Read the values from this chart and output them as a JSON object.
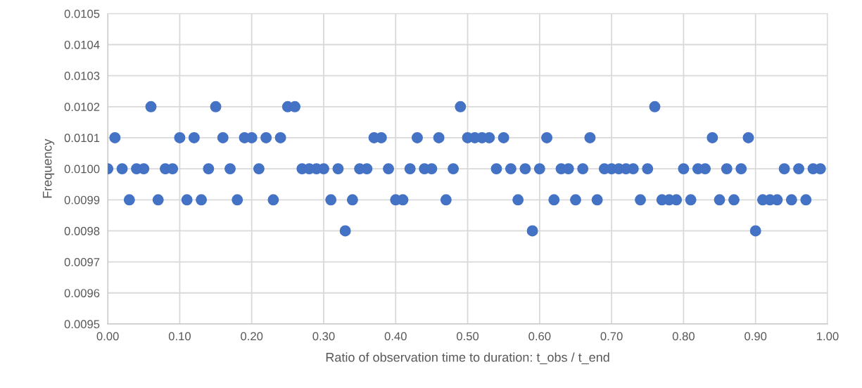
{
  "chart_data": {
    "type": "scatter",
    "xlabel": "Ratio of observation time to duration: t_obs / t_end",
    "ylabel": "Frequency",
    "x": [
      0.0,
      0.01,
      0.02,
      0.03,
      0.04,
      0.05,
      0.06,
      0.07,
      0.08,
      0.09,
      0.1,
      0.11,
      0.12,
      0.13,
      0.14,
      0.15,
      0.16,
      0.17,
      0.18,
      0.19,
      0.2,
      0.21,
      0.22,
      0.23,
      0.24,
      0.25,
      0.26,
      0.27,
      0.28,
      0.29,
      0.3,
      0.31,
      0.32,
      0.33,
      0.34,
      0.35,
      0.36,
      0.37,
      0.38,
      0.39,
      0.4,
      0.41,
      0.42,
      0.43,
      0.44,
      0.45,
      0.46,
      0.47,
      0.48,
      0.49,
      0.5,
      0.51,
      0.52,
      0.53,
      0.54,
      0.55,
      0.56,
      0.57,
      0.58,
      0.59,
      0.6,
      0.61,
      0.62,
      0.63,
      0.64,
      0.65,
      0.66,
      0.67,
      0.68,
      0.69,
      0.7,
      0.71,
      0.72,
      0.73,
      0.74,
      0.75,
      0.76,
      0.77,
      0.78,
      0.79,
      0.8,
      0.81,
      0.82,
      0.83,
      0.84,
      0.85,
      0.86,
      0.87,
      0.88,
      0.89,
      0.9,
      0.91,
      0.92,
      0.93,
      0.94,
      0.95,
      0.96,
      0.97,
      0.98,
      0.99
    ],
    "series": [
      {
        "color": "#4472c4",
        "values": [
          0.01,
          0.0101,
          0.01,
          0.0099,
          0.01,
          0.01,
          0.0102,
          0.0099,
          0.01,
          0.01,
          0.0101,
          0.0099,
          0.0101,
          0.0099,
          0.01,
          0.0102,
          0.0101,
          0.01,
          0.0099,
          0.0101,
          0.0101,
          0.01,
          0.0101,
          0.0099,
          0.0101,
          0.0102,
          0.0102,
          0.01,
          0.01,
          0.01,
          0.01,
          0.0099,
          0.01,
          0.0098,
          0.0099,
          0.01,
          0.01,
          0.0101,
          0.0101,
          0.01,
          0.0099,
          0.0099,
          0.01,
          0.0101,
          0.01,
          0.01,
          0.0101,
          0.0099,
          0.01,
          0.0102,
          0.0101,
          0.0101,
          0.0101,
          0.0101,
          0.01,
          0.0101,
          0.01,
          0.0099,
          0.01,
          0.0098,
          0.01,
          0.0101,
          0.0099,
          0.01,
          0.01,
          0.0099,
          0.01,
          0.0101,
          0.0099,
          0.01,
          0.01,
          0.01,
          0.01,
          0.01,
          0.0099,
          0.01,
          0.0102,
          0.0099,
          0.0099,
          0.0099,
          0.01,
          0.0099,
          0.01,
          0.01,
          0.0101,
          0.0099,
          0.01,
          0.0099,
          0.01,
          0.0101,
          0.0098,
          0.0099,
          0.0099,
          0.0099,
          0.01,
          0.0099,
          0.01,
          0.0099,
          0.01,
          0.01
        ]
      }
    ],
    "xlim": [
      0,
      1
    ],
    "ylim": [
      0.0095,
      0.0105
    ],
    "xticks": [
      {
        "value": 0,
        "label": "0.00"
      },
      {
        "value": 0.1,
        "label": "0.10"
      },
      {
        "value": 0.2,
        "label": "0.20"
      },
      {
        "value": 0.3,
        "label": "0.30"
      },
      {
        "value": 0.4,
        "label": "0.40"
      },
      {
        "value": 0.5,
        "label": "0.50"
      },
      {
        "value": 0.6,
        "label": "0.60"
      },
      {
        "value": 0.7,
        "label": "0.70"
      },
      {
        "value": 0.8,
        "label": "0.80"
      },
      {
        "value": 0.9,
        "label": "0.90"
      },
      {
        "value": 1,
        "label": "1.00"
      }
    ],
    "yticks": [
      0.0095,
      0.0096,
      0.0097,
      0.0098,
      0.0099,
      {
        "value": 0.01,
        "label": "0.0100"
      },
      0.0101,
      0.0102,
      0.0103,
      0.0104,
      0.0105
    ],
    "grid": true,
    "marker": "circle"
  }
}
